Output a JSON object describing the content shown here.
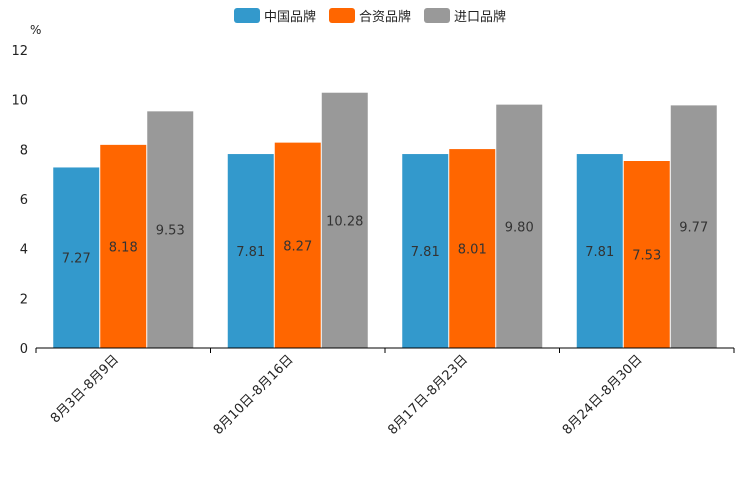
{
  "chart_data": {
    "type": "bar",
    "title": "",
    "xlabel": "",
    "ylabel": "%",
    "ylim": [
      0,
      12
    ],
    "yticks": [
      0,
      2,
      4,
      6,
      8,
      10,
      12
    ],
    "grid": false,
    "legend_position": "top-center",
    "categories": [
      "8月3日-8月9日",
      "8月10日-8月16日",
      "8月17日-8月23日",
      "8月24日-8月30日"
    ],
    "series": [
      {
        "name": "中国品牌",
        "color": "#3399cc",
        "values": [
          7.27,
          7.81,
          7.81,
          7.81
        ],
        "labels": [
          "7.27",
          "7.81",
          "7.81",
          "7.81"
        ]
      },
      {
        "name": "合资品牌",
        "color": "#ff6600",
        "values": [
          8.18,
          8.27,
          8.01,
          7.53
        ],
        "labels": [
          "8.18",
          "8.27",
          "8.01",
          "7.53"
        ]
      },
      {
        "name": "进口品牌",
        "color": "#999999",
        "values": [
          9.53,
          10.28,
          9.8,
          9.77
        ],
        "labels": [
          "9.53",
          "10.28",
          "9.80",
          "9.77"
        ]
      }
    ]
  }
}
